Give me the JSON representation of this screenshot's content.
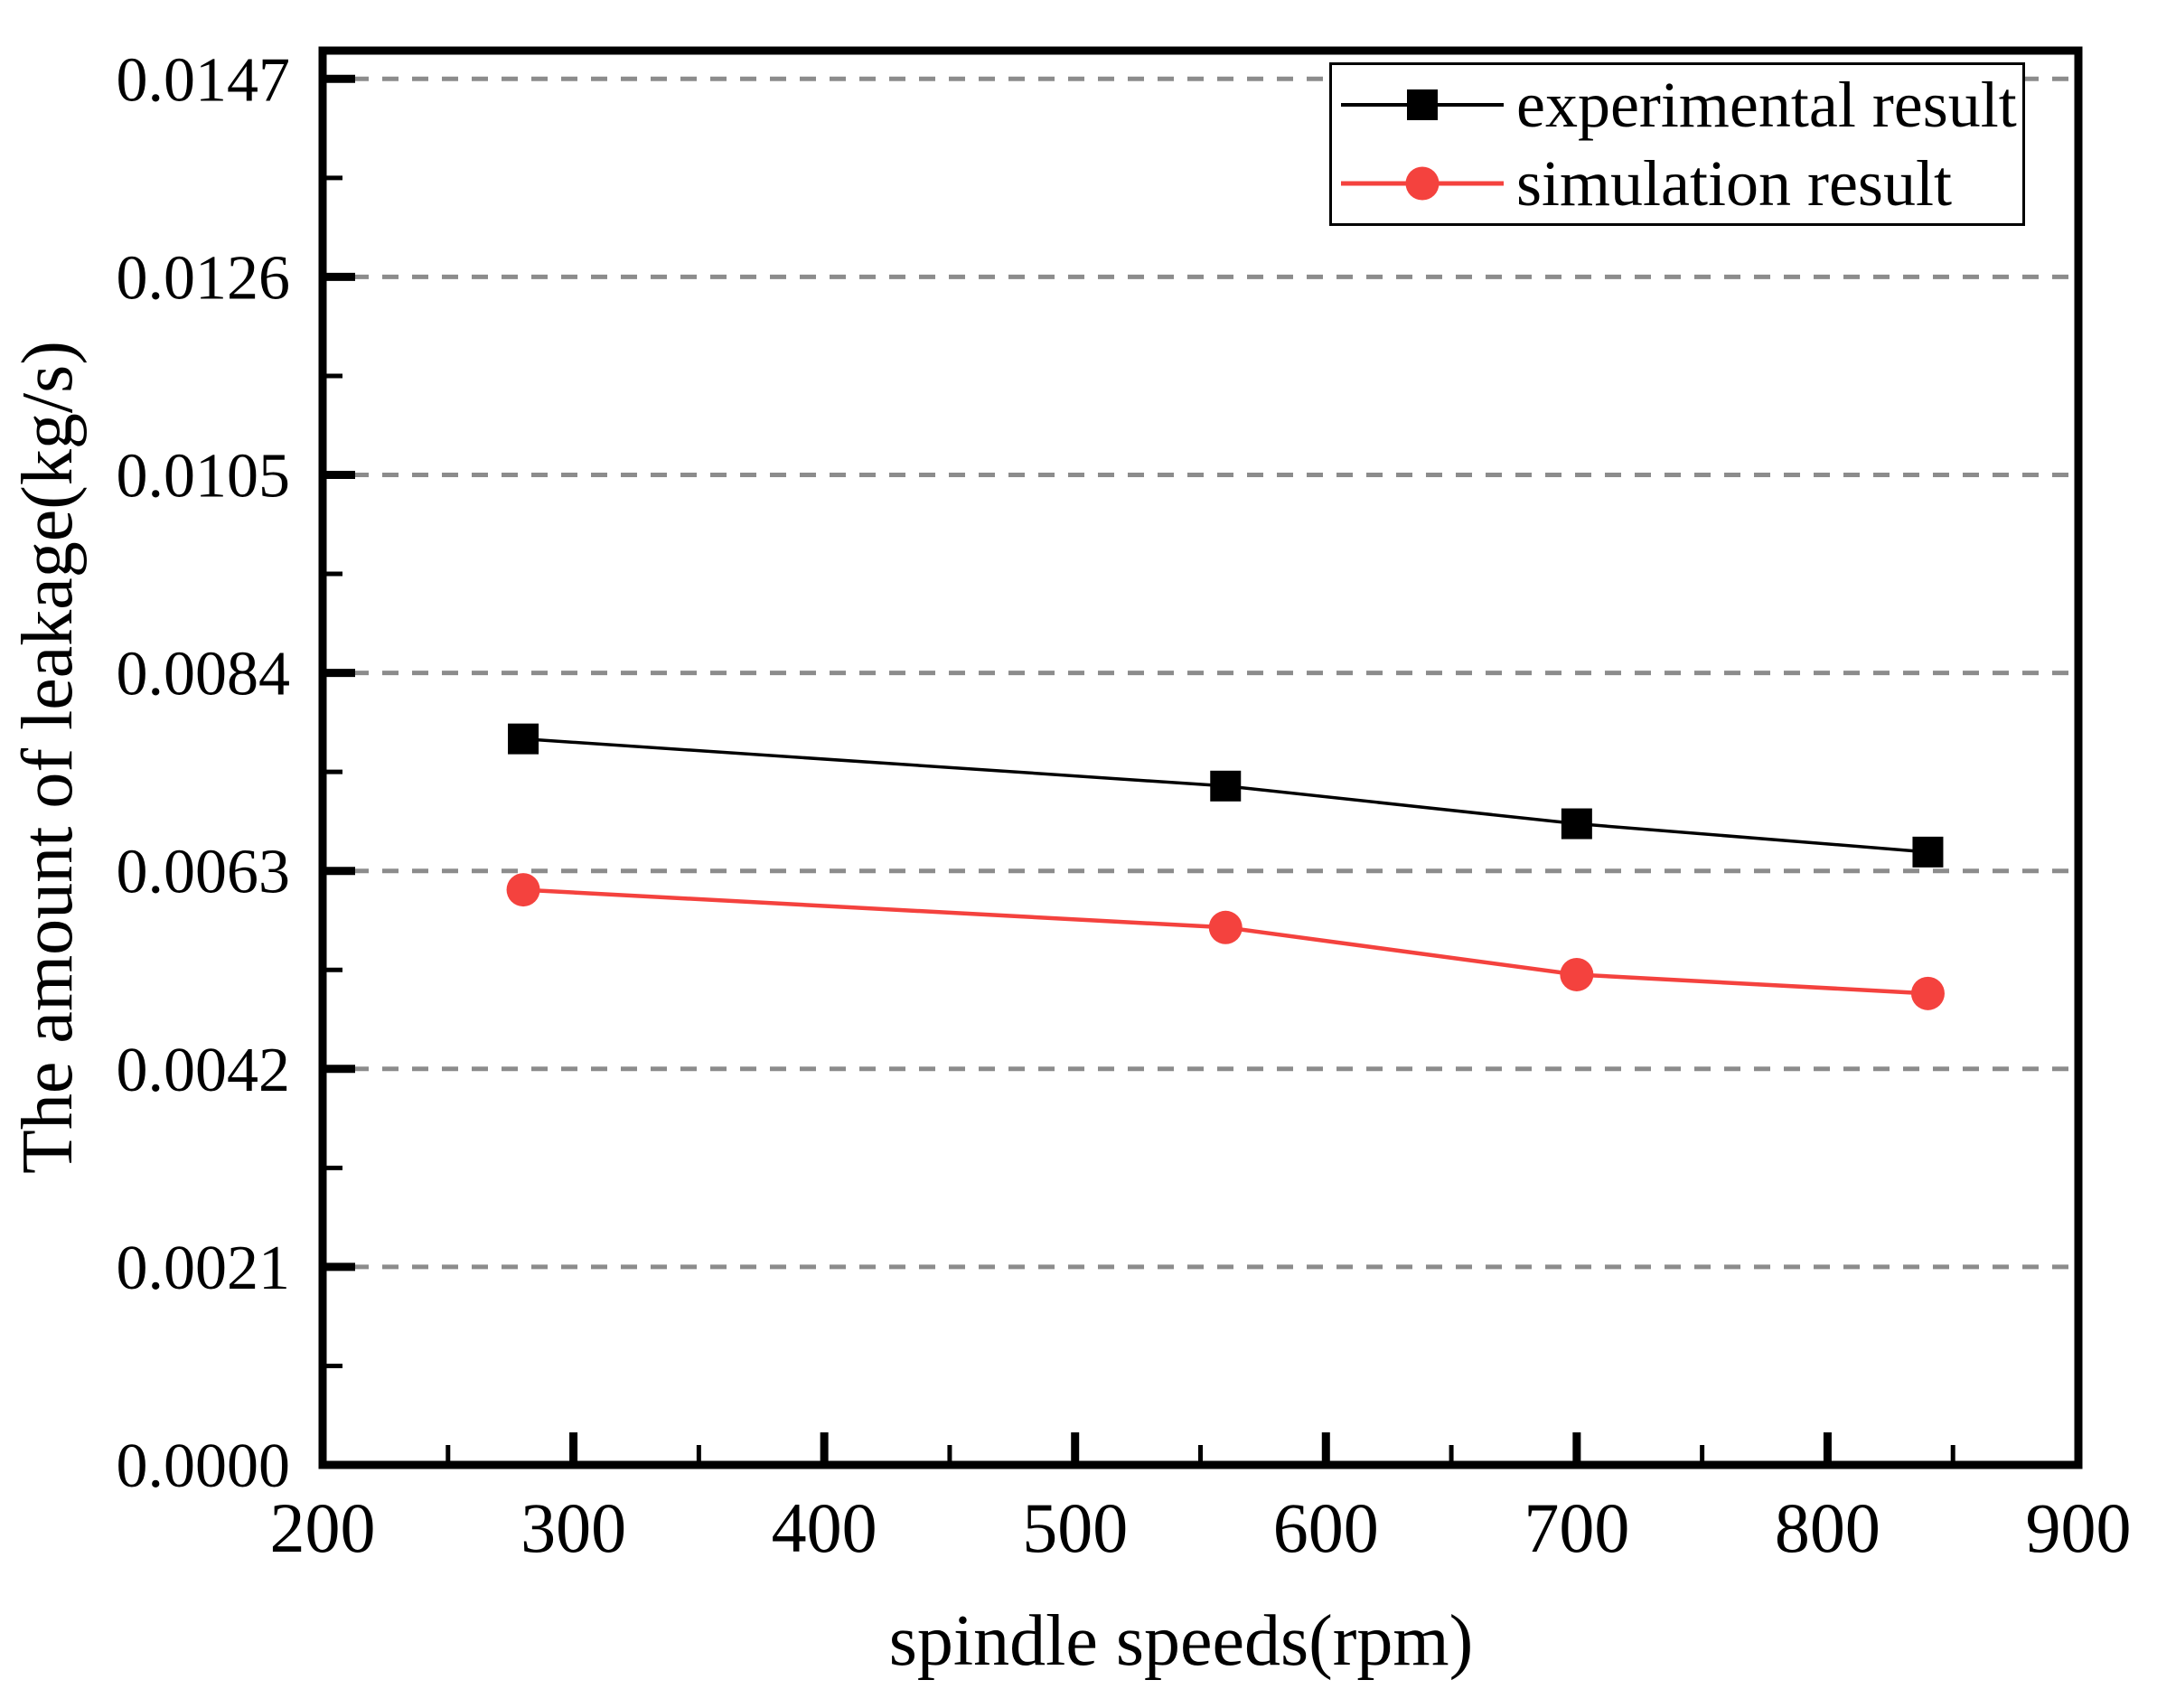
{
  "chart_data": {
    "type": "line",
    "title": "",
    "xlabel": "spindle speeds(rpm)",
    "ylabel": "The amount of leakage(kg/s)",
    "x": [
      280,
      560,
      700,
      840
    ],
    "series": [
      {
        "name": "experimental result",
        "marker": "square",
        "color": "#000000",
        "values": [
          0.0077,
          0.0072,
          0.0068,
          0.0065
        ]
      },
      {
        "name": "simulation result",
        "marker": "circle",
        "color": "#f4423e",
        "values": [
          0.0061,
          0.0057,
          0.0052,
          0.005
        ]
      }
    ],
    "xlim": [
      200,
      900
    ],
    "ylim": [
      0,
      0.015
    ],
    "x_major_ticks": [
      200,
      300,
      400,
      500,
      600,
      700,
      800,
      900
    ],
    "x_minor_ticks": [
      250,
      350,
      450,
      550,
      650,
      750,
      850
    ],
    "y_major_ticks": [
      0.0,
      0.0021,
      0.0042,
      0.0063,
      0.0084,
      0.0105,
      0.0126,
      0.0147
    ],
    "y_minor_ticks": [
      0.00105,
      0.00315,
      0.00525,
      0.00735,
      0.00945,
      0.01155,
      0.01365
    ],
    "y_tick_decimals": 4,
    "grid": "horizontal-dashed",
    "legend_position": "top-right",
    "styles": {
      "background": "#ffffff",
      "axis_color": "#000000",
      "grid_color": "#8c8c8c",
      "text_color": "#000000"
    }
  }
}
